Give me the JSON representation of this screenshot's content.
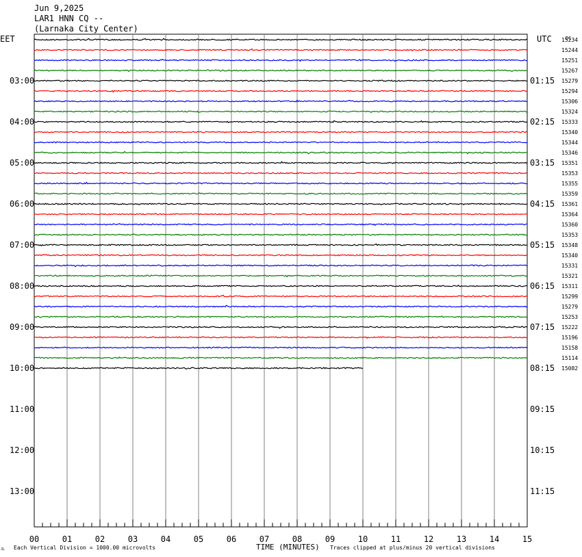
{
  "header": {
    "date": "Jun 9,2025",
    "station": "LAR1 HNN CQ --",
    "location": "(Larnaka City Center)"
  },
  "left_zone_label": "EET",
  "right_zone_label": "UTC",
  "dc_label": "DC",
  "footer": {
    "left_note": "Each Vertical Division = 1000.00 microvolts",
    "xlabel": "TIME (MINUTES)",
    "right_note": "Traces clipped at plus/minus 20 vertical divisions",
    "corner_mark": "JL"
  },
  "colors": {
    "trace_cycle": [
      "#000000",
      "#ff0000",
      "#0000ff",
      "#008000"
    ],
    "grid": "#808080",
    "background": "#ffffff"
  },
  "chart_data": {
    "type": "line",
    "x_axis": {
      "range": [
        0,
        15
      ],
      "ticks": [
        "00",
        "01",
        "02",
        "03",
        "04",
        "05",
        "06",
        "07",
        "08",
        "09",
        "10",
        "11",
        "12",
        "13",
        "14",
        "15"
      ],
      "minor_per_major": 4
    },
    "row_minutes": 15,
    "rows_total": 48,
    "left_hour_labels": [
      "03:00",
      "04:00",
      "05:00",
      "06:00",
      "07:00",
      "08:00",
      "09:00",
      "10:00",
      "11:00",
      "12:00",
      "13:00"
    ],
    "right_hour_labels": [
      "01:15",
      "02:15",
      "03:15",
      "04:15",
      "05:15",
      "06:15",
      "07:15",
      "08:15",
      "09:15",
      "10:15",
      "11:15"
    ],
    "first_labeled_row": 4,
    "dc_offsets": [
      15234,
      15244,
      15251,
      15267,
      15279,
      15294,
      15306,
      15324,
      15333,
      15340,
      15344,
      15346,
      15351,
      15353,
      15355,
      15359,
      15361,
      15364,
      15360,
      15353,
      15348,
      15340,
      15331,
      15321,
      15311,
      15299,
      15279,
      15253,
      15222,
      15196,
      15158,
      15114,
      15082
    ],
    "last_trace_end_minute": 10
  }
}
